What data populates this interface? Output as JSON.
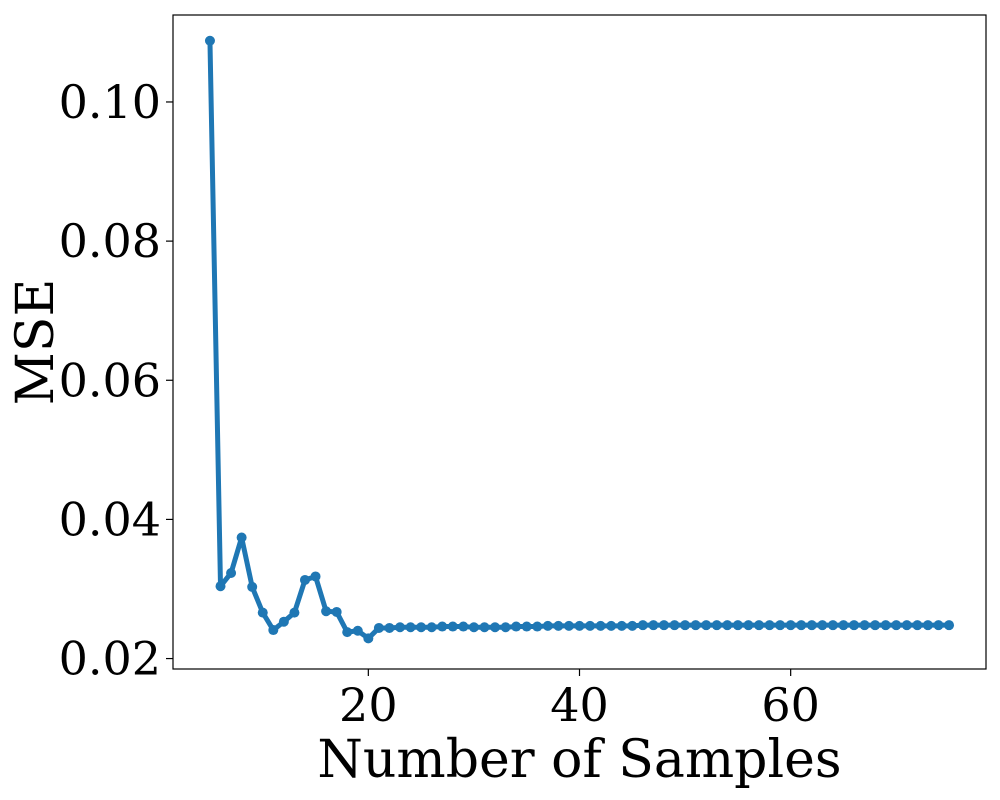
{
  "chart_data": {
    "type": "line",
    "title": "",
    "xlabel": "Number of Samples",
    "ylabel": "MSE",
    "xlim": [
      1.5,
      78.5
    ],
    "ylim": [
      0.0185,
      0.1125
    ],
    "xticks": [
      20,
      40,
      60
    ],
    "xtick_labels": [
      "20",
      "40",
      "60"
    ],
    "yticks": [
      0.02,
      0.04,
      0.06,
      0.08,
      0.1
    ],
    "ytick_labels": [
      "0.02",
      "0.04",
      "0.06",
      "0.08",
      "0.10"
    ],
    "grid": false,
    "legend": "none",
    "colors": {
      "series": "#1f77b4",
      "axes": "#000000"
    },
    "series": [
      {
        "x": [
          5,
          6,
          7,
          8,
          9,
          10,
          11,
          12,
          13,
          14,
          15,
          16,
          17,
          18,
          19,
          20,
          21,
          22,
          23,
          24,
          25,
          26,
          27,
          28,
          29,
          30,
          31,
          32,
          33,
          34,
          35,
          36,
          37,
          38,
          39,
          40,
          41,
          42,
          43,
          44,
          45,
          46,
          47,
          48,
          49,
          50,
          51,
          52,
          53,
          54,
          55,
          56,
          57,
          58,
          59,
          60,
          61,
          62,
          63,
          64,
          65,
          66,
          67,
          68,
          69,
          70,
          71,
          72,
          73,
          74,
          75
        ],
        "y": [
          0.1088,
          0.0304,
          0.0323,
          0.0374,
          0.0303,
          0.0266,
          0.0241,
          0.0253,
          0.0266,
          0.0313,
          0.0318,
          0.0268,
          0.0267,
          0.0238,
          0.024,
          0.0229,
          0.0244,
          0.0244,
          0.0245,
          0.0245,
          0.0245,
          0.0245,
          0.0246,
          0.0246,
          0.0246,
          0.0245,
          0.0245,
          0.0245,
          0.0245,
          0.0246,
          0.0246,
          0.0246,
          0.0247,
          0.0247,
          0.0247,
          0.0247,
          0.0247,
          0.0247,
          0.0247,
          0.0247,
          0.0247,
          0.0248,
          0.0248,
          0.0248,
          0.0248,
          0.0248,
          0.0248,
          0.0248,
          0.0248,
          0.0248,
          0.0248,
          0.0248,
          0.0248,
          0.0248,
          0.0248,
          0.0248,
          0.0248,
          0.0248,
          0.0248,
          0.0248,
          0.0248,
          0.0248,
          0.0248,
          0.0248,
          0.0248,
          0.0248,
          0.0248,
          0.0248,
          0.0248,
          0.0248,
          0.0248
        ]
      }
    ]
  }
}
